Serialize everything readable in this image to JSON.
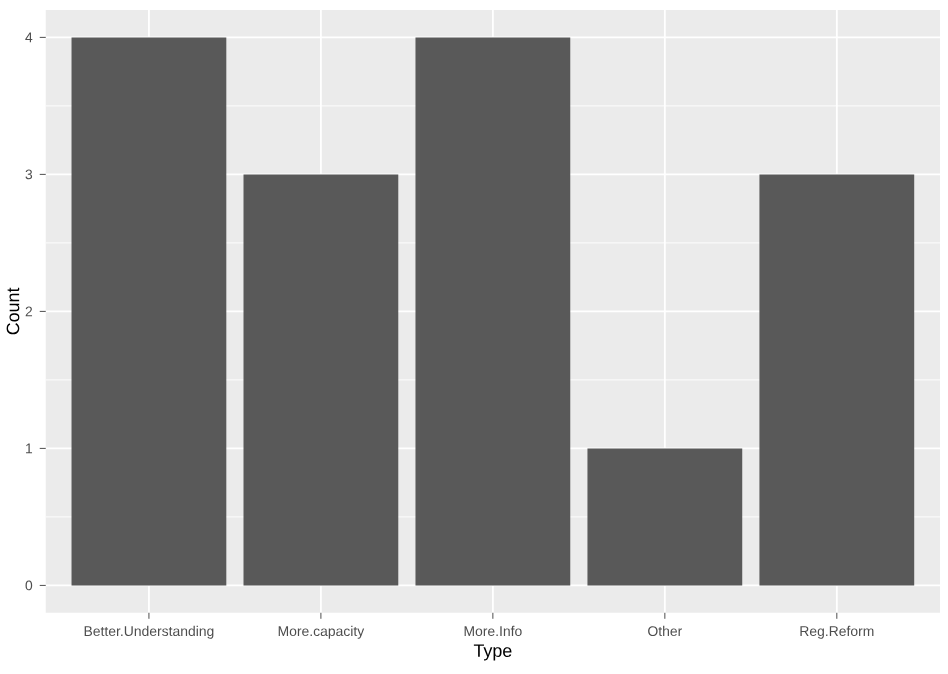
{
  "chart_data": {
    "type": "bar",
    "xlabel": "Type",
    "ylabel": "Count",
    "categories": [
      "Better.Understanding",
      "More.capacity",
      "More.Info",
      "Other",
      "Reg.Reform"
    ],
    "values": [
      4,
      3,
      4,
      1,
      3
    ],
    "color": "#595959",
    "ylim": [
      -0.2,
      4.2
    ],
    "yticks": [
      0,
      1,
      2,
      3,
      4
    ],
    "grid": true
  }
}
